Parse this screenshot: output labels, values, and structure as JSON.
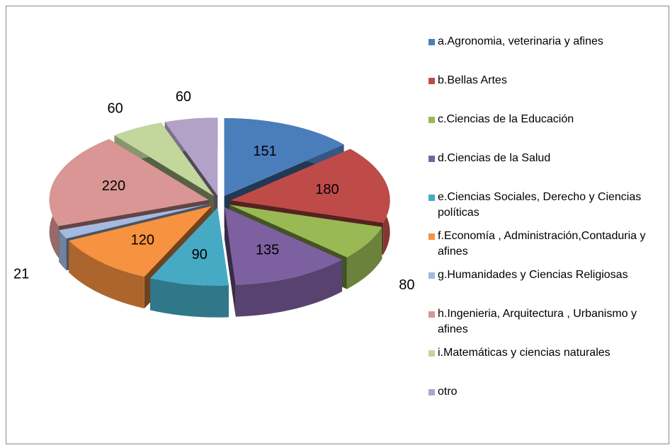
{
  "chart_data": {
    "type": "pie",
    "categories": [
      "a.Agronomia, veterinaria y afines",
      "b.Bellas Artes",
      "c.Ciencias de la Educación",
      "d.Ciencias de la Salud",
      "e.Ciencias Sociales, Derecho y Ciencias políticas",
      "f.Economía , Administración,Contaduria y afines",
      "g.Humanidades y Ciencias Religiosas",
      "h.Ingenieria, Arquitectura , Urbanismo y afines",
      "i.Matemáticas y ciencias naturales",
      "otro"
    ],
    "values": [
      151,
      180,
      80,
      135,
      90,
      120,
      21,
      220,
      60,
      60
    ],
    "colors": [
      "#4a7ebb",
      "#be4b48",
      "#98b954",
      "#7d60a0",
      "#46aac5",
      "#f69240",
      "#a5b9df",
      "#d99694",
      "#c3d69b",
      "#b3a2c7"
    ],
    "legend": "right"
  }
}
